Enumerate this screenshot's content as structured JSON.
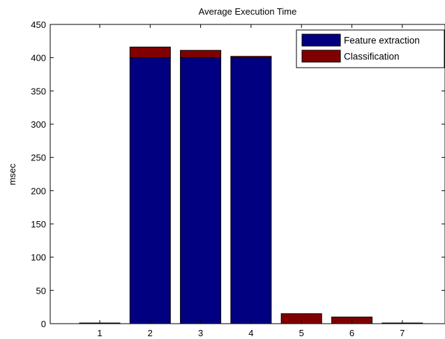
{
  "chart_data": {
    "type": "bar",
    "stacked": true,
    "title": "Average Execution Time",
    "xlabel": "",
    "ylabel": "msec",
    "categories": [
      "1",
      "2",
      "3",
      "4",
      "5",
      "6",
      "7"
    ],
    "series": [
      {
        "name": "Feature extraction",
        "color": "#000080",
        "values": [
          0,
          400,
          400,
          400,
          0,
          0,
          0
        ]
      },
      {
        "name": "Classification",
        "color": "#800000",
        "values": [
          1,
          16,
          11,
          2,
          15,
          10,
          1
        ]
      }
    ],
    "ylim": [
      0,
      450
    ],
    "yticks": [
      0,
      50,
      100,
      150,
      200,
      250,
      300,
      350,
      400,
      450
    ],
    "grid": false,
    "legend_position": "top-right"
  }
}
